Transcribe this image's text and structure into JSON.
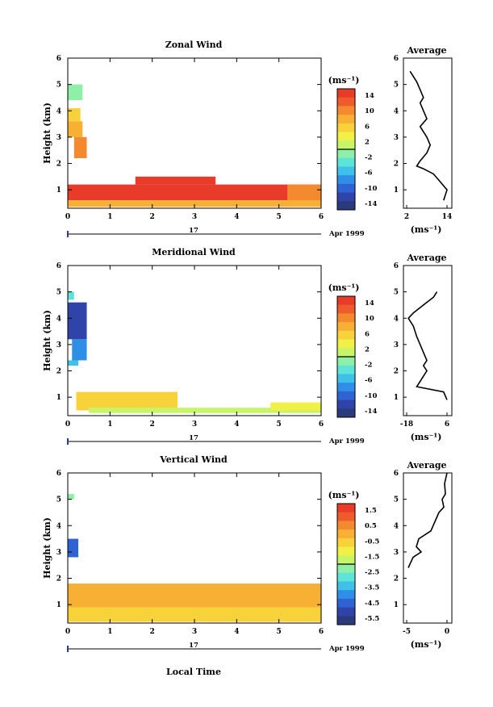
{
  "colors": {
    "scale": [
      "#2b3a7a",
      "#3043a8",
      "#2f63d4",
      "#2f8fe6",
      "#3fc0e8",
      "#5de3d8",
      "#8ef0a6",
      "#c6f56a",
      "#f0f046",
      "#f8d23a",
      "#f7b034",
      "#f48a30",
      "#ef5b2a",
      "#e93b2a"
    ],
    "line": "#000000"
  },
  "charts": [
    {
      "title": "Zonal Wind",
      "ylabel": "Height (km)",
      "x_tick_labels": [
        "0",
        "1",
        "2",
        "3",
        "4",
        "5",
        "6"
      ],
      "y_tick_labels": [
        "1",
        "2",
        "3",
        "4",
        "5",
        "6"
      ],
      "date_day": "17",
      "date_month": "Apr 1999",
      "unit_label": "(ms⁻¹)",
      "colorbar_labels": [
        "14",
        "10",
        "6",
        "2",
        "-2",
        "-6",
        "-10",
        "-14"
      ],
      "avg_title": "Average",
      "avg_x_tick_labels": [
        "2",
        "14"
      ],
      "avg_unit": "(ms⁻¹)"
    },
    {
      "title": "Meridional Wind",
      "ylabel": "Height (km)",
      "x_tick_labels": [
        "0",
        "1",
        "2",
        "3",
        "4",
        "5",
        "6"
      ],
      "y_tick_labels": [
        "1",
        "2",
        "3",
        "4",
        "5",
        "6"
      ],
      "date_day": "17",
      "date_month": "Apr 1999",
      "unit_label": "(ms⁻¹)",
      "colorbar_labels": [
        "14",
        "10",
        "6",
        "2",
        "-2",
        "-6",
        "-10",
        "-14"
      ],
      "avg_title": "Average",
      "avg_x_tick_labels": [
        "-18",
        "6"
      ],
      "avg_unit": "(ms⁻¹)"
    },
    {
      "title": "Vertical Wind",
      "ylabel": "Height (km)",
      "xlabel": "Local Time",
      "x_tick_labels": [
        "0",
        "1",
        "2",
        "3",
        "4",
        "5",
        "6"
      ],
      "y_tick_labels": [
        "1",
        "2",
        "3",
        "4",
        "5",
        "6"
      ],
      "date_day": "17",
      "date_month": "Apr 1999",
      "unit_label": "(ms⁻¹)",
      "colorbar_labels": [
        "1.5",
        "0.5",
        "-0.5",
        "-1.5",
        "-2.5",
        "-3.5",
        "-4.5",
        "-5.5"
      ],
      "avg_title": "Average",
      "avg_x_tick_labels": [
        "-5",
        "0"
      ],
      "avg_unit": "(ms⁻¹)"
    }
  ],
  "chart_data": [
    {
      "type": "heatmap",
      "title": "Zonal Wind",
      "xlim": [
        0,
        6
      ],
      "ylim": [
        0.5,
        6
      ],
      "cells": [
        {
          "x": [
            0.0,
            0.35
          ],
          "y": [
            4.4,
            5.0
          ],
          "c": 6
        },
        {
          "x": [
            0.0,
            0.3
          ],
          "y": [
            3.6,
            4.1
          ],
          "c": 9
        },
        {
          "x": [
            0.0,
            0.35
          ],
          "y": [
            3.0,
            3.6
          ],
          "c": 10
        },
        {
          "x": [
            0.15,
            0.45
          ],
          "y": [
            2.2,
            3.0
          ],
          "c": 11
        },
        {
          "x": [
            0.0,
            6.0
          ],
          "y": [
            0.6,
            1.2
          ],
          "c": 13
        },
        {
          "x": [
            0.0,
            6.0
          ],
          "y": [
            0.35,
            0.6
          ],
          "c": 10
        },
        {
          "x": [
            1.6,
            3.5
          ],
          "y": [
            1.2,
            1.5
          ],
          "c": 13
        },
        {
          "x": [
            5.2,
            6.0
          ],
          "y": [
            0.6,
            1.2
          ],
          "c": 11
        }
      ],
      "avg_profile": {
        "x": [
          3,
          5,
          6,
          7,
          6,
          7,
          8,
          6,
          8,
          9,
          8,
          6,
          5,
          7,
          10,
          12,
          14,
          13
        ],
        "y": [
          5.5,
          5.1,
          4.8,
          4.5,
          4.3,
          4.0,
          3.7,
          3.4,
          3.0,
          2.7,
          2.4,
          2.1,
          1.9,
          1.8,
          1.6,
          1.3,
          1.0,
          0.6
        ]
      }
    },
    {
      "type": "heatmap",
      "title": "Meridional Wind",
      "xlim": [
        0,
        6
      ],
      "ylim": [
        0.5,
        6
      ],
      "cells": [
        {
          "x": [
            0.0,
            0.15
          ],
          "y": [
            4.7,
            5.0
          ],
          "c": 5
        },
        {
          "x": [
            0.0,
            0.45
          ],
          "y": [
            3.2,
            4.6
          ],
          "c": 1
        },
        {
          "x": [
            0.1,
            0.45
          ],
          "y": [
            2.4,
            3.2
          ],
          "c": 3
        },
        {
          "x": [
            0.0,
            0.25
          ],
          "y": [
            2.2,
            2.4
          ],
          "c": 4
        },
        {
          "x": [
            0.2,
            2.6
          ],
          "y": [
            0.5,
            1.2
          ],
          "c": 9
        },
        {
          "x": [
            0.5,
            6.0
          ],
          "y": [
            0.4,
            0.6
          ],
          "c": 7
        },
        {
          "x": [
            4.8,
            6.0
          ],
          "y": [
            0.5,
            0.8
          ],
          "c": 8
        }
      ],
      "avg_profile": {
        "x": [
          0,
          -2,
          -8,
          -14,
          -17,
          -14,
          -12,
          -10,
          -8,
          -6,
          -8,
          -6,
          -8,
          -10,
          -12,
          4,
          6
        ],
        "y": [
          5.0,
          4.8,
          4.5,
          4.2,
          4.0,
          3.7,
          3.3,
          3.0,
          2.7,
          2.4,
          2.2,
          2.0,
          1.8,
          1.6,
          1.4,
          1.2,
          0.9
        ]
      }
    },
    {
      "type": "heatmap",
      "title": "Vertical Wind",
      "xlim": [
        0,
        6
      ],
      "ylim": [
        0.5,
        6
      ],
      "cells": [
        {
          "x": [
            0.0,
            0.15
          ],
          "y": [
            5.0,
            5.2
          ],
          "c": 6
        },
        {
          "x": [
            0.0,
            0.25
          ],
          "y": [
            2.8,
            3.5
          ],
          "c": 2
        },
        {
          "x": [
            0.0,
            6.0
          ],
          "y": [
            0.35,
            1.8
          ],
          "c": 10
        },
        {
          "x": [
            0.0,
            6.0
          ],
          "y": [
            0.35,
            0.9
          ],
          "c": 9
        }
      ],
      "avg_profile": {
        "x": [
          0,
          -0.3,
          -0.2,
          -0.6,
          -0.4,
          -1,
          -2,
          -3.5,
          -3.8,
          -3.2,
          -4.2,
          -4.5,
          -4.8
        ],
        "y": [
          6.0,
          5.6,
          5.2,
          5.0,
          4.7,
          4.5,
          3.8,
          3.5,
          3.2,
          3.0,
          2.8,
          2.6,
          2.4
        ]
      }
    }
  ]
}
